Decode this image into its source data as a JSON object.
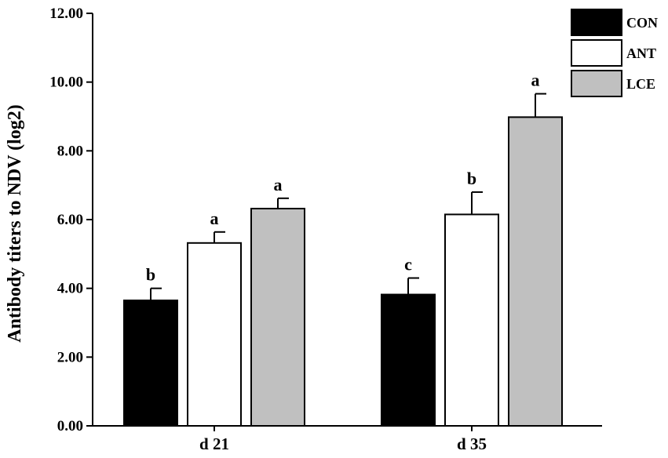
{
  "chart_data": {
    "type": "bar",
    "title": "",
    "xlabel": "",
    "ylabel": "Antibody titers to NDV (log2)",
    "categories": [
      "d 21",
      "d 35"
    ],
    "ylim": [
      0,
      12
    ],
    "yticks": [
      "0.00",
      "2.00",
      "4.00",
      "6.00",
      "8.00",
      "10.00",
      "12.00"
    ],
    "legend_position": "top-right",
    "grid": false,
    "series": [
      {
        "name": "CON",
        "color": "#000000",
        "values": [
          3.65,
          3.82
        ],
        "errors": [
          0.35,
          0.48
        ],
        "labels": [
          "b",
          "c"
        ]
      },
      {
        "name": "ANT",
        "color": "#ffffff",
        "values": [
          5.32,
          6.15
        ],
        "errors": [
          0.32,
          0.65
        ],
        "labels": [
          "a",
          "b"
        ]
      },
      {
        "name": "LCE",
        "color": "#c0c0c0",
        "values": [
          6.32,
          8.98
        ],
        "errors": [
          0.3,
          0.68
        ],
        "labels": [
          "a",
          "a"
        ]
      }
    ]
  }
}
